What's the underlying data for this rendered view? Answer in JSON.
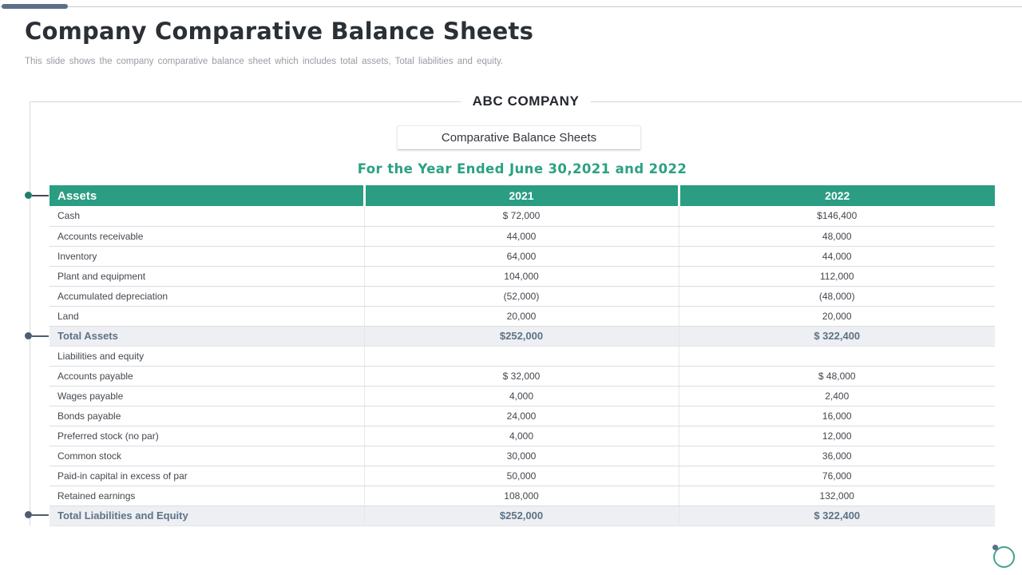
{
  "colors": {
    "header_green": "#2a9d82",
    "period_text_green": "#2ba183",
    "accent_bar_slate": "#5b6f87",
    "total_row_text": "#5e7286",
    "total_row_bg": "#edeff3",
    "title_text": "#2b2f36",
    "subtitle_text": "#989ca3"
  },
  "top": {
    "title": "Company Comparative Balance Sheets",
    "subtitle": "This slide shows the company comparative  balance sheet which includes total assets, Total liabilities and equity."
  },
  "sheet": {
    "company_name": "ABC COMPANY",
    "sheet_title": "Comparative Balance Sheets",
    "period": "For the Year Ended June 30,2021 and 2022"
  },
  "table": {
    "columns": [
      "Assets",
      "2021",
      "2022"
    ],
    "rows": [
      {
        "label": "Cash",
        "v2021": "$ 72,000",
        "v2022": "$146,400"
      },
      {
        "label": "Accounts receivable",
        "v2021": "44,000",
        "v2022": "48,000"
      },
      {
        "label": "Inventory",
        "v2021": "64,000",
        "v2022": "44,000"
      },
      {
        "label": "Plant and equipment",
        "v2021": "104,000",
        "v2022": "112,000"
      },
      {
        "label": "Accumulated depreciation",
        "v2021": "(52,000)",
        "v2022": "(48,000)"
      },
      {
        "label": "Land",
        "v2021": "20,000",
        "v2022": "20,000"
      },
      {
        "label": "Total Assets",
        "v2021": "$252,000",
        "v2022": "$ 322,400"
      },
      {
        "label": "Liabilities  and equity",
        "v2021": "",
        "v2022": ""
      },
      {
        "label": "Accounts payable",
        "v2021": "$ 32,000",
        "v2022": "$ 48,000"
      },
      {
        "label": "Wages payable",
        "v2021": "4,000",
        "v2022": "2,400"
      },
      {
        "label": "Bonds payable",
        "v2021": "24,000",
        "v2022": "16,000"
      },
      {
        "label": "Preferred stock (no par)",
        "v2021": "4,000",
        "v2022": "12,000"
      },
      {
        "label": "Common stock",
        "v2021": "30,000",
        "v2022": "36,000"
      },
      {
        "label": "Paid-in capital in excess of par",
        "v2021": "50,000",
        "v2022": "76,000"
      },
      {
        "label": "Retained earnings",
        "v2021": "108,000",
        "v2022": "132,000"
      },
      {
        "label": "Total Liabilities and Equity",
        "v2021": "$252,000",
        "v2022": "$ 322,400"
      }
    ]
  }
}
